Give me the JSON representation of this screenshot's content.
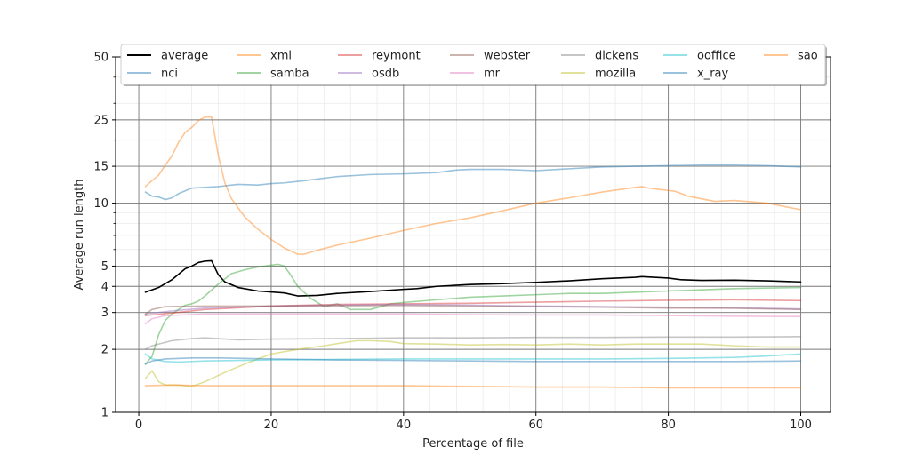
{
  "chart_data": {
    "type": "line",
    "title": "",
    "xlabel": "Percentage of file",
    "ylabel": "Average run length",
    "xlim": [
      -3.5,
      104.5
    ],
    "ylim": [
      1,
      50
    ],
    "yscale": "log",
    "xticks": [
      0,
      20,
      40,
      60,
      80,
      100
    ],
    "yticks": [
      1,
      2,
      3,
      4,
      5,
      10,
      15,
      25,
      50
    ],
    "grid": true,
    "legend": {
      "placement": "top",
      "columns": 7
    },
    "series": [
      {
        "name": "average",
        "color": "#000000",
        "width": 1.6,
        "opacity": 1,
        "points": [
          [
            1,
            3.75
          ],
          [
            3,
            3.95
          ],
          [
            5,
            4.3
          ],
          [
            7,
            4.85
          ],
          [
            8,
            5.0
          ],
          [
            9,
            5.2
          ],
          [
            10,
            5.28
          ],
          [
            11,
            5.3
          ],
          [
            12,
            4.55
          ],
          [
            13,
            4.2
          ],
          [
            15,
            3.95
          ],
          [
            18,
            3.8
          ],
          [
            22,
            3.72
          ],
          [
            24,
            3.6
          ],
          [
            27,
            3.62
          ],
          [
            30,
            3.7
          ],
          [
            35,
            3.78
          ],
          [
            40,
            3.87
          ],
          [
            42,
            3.9
          ],
          [
            45,
            4.0
          ],
          [
            50,
            4.08
          ],
          [
            55,
            4.12
          ],
          [
            60,
            4.18
          ],
          [
            65,
            4.25
          ],
          [
            70,
            4.35
          ],
          [
            75,
            4.42
          ],
          [
            76,
            4.45
          ],
          [
            80,
            4.38
          ],
          [
            82,
            4.3
          ],
          [
            85,
            4.27
          ],
          [
            90,
            4.28
          ],
          [
            95,
            4.25
          ],
          [
            100,
            4.2
          ]
        ]
      },
      {
        "name": "nci",
        "color": "#1f77b4",
        "width": 1.6,
        "opacity": 0.45,
        "points": [
          [
            1,
            11.3
          ],
          [
            2,
            10.8
          ],
          [
            3,
            10.7
          ],
          [
            4,
            10.4
          ],
          [
            5,
            10.6
          ],
          [
            6,
            11.1
          ],
          [
            8,
            11.8
          ],
          [
            10,
            11.9
          ],
          [
            12,
            12.0
          ],
          [
            15,
            12.3
          ],
          [
            18,
            12.2
          ],
          [
            20,
            12.4
          ],
          [
            22,
            12.5
          ],
          [
            25,
            12.8
          ],
          [
            30,
            13.4
          ],
          [
            35,
            13.7
          ],
          [
            40,
            13.8
          ],
          [
            45,
            14.0
          ],
          [
            48,
            14.4
          ],
          [
            50,
            14.5
          ],
          [
            55,
            14.5
          ],
          [
            60,
            14.3
          ],
          [
            65,
            14.6
          ],
          [
            70,
            14.9
          ],
          [
            75,
            15.0
          ],
          [
            80,
            15.1
          ],
          [
            85,
            15.2
          ],
          [
            90,
            15.2
          ],
          [
            95,
            15.1
          ],
          [
            100,
            14.9
          ]
        ]
      },
      {
        "name": "xml",
        "color": "#ff7f0e",
        "width": 1.6,
        "opacity": 0.45,
        "points": [
          [
            1,
            12.0
          ],
          [
            2,
            12.8
          ],
          [
            3,
            13.6
          ],
          [
            4,
            15.2
          ],
          [
            5,
            16.8
          ],
          [
            6,
            19.5
          ],
          [
            7,
            21.8
          ],
          [
            8,
            23.0
          ],
          [
            9,
            24.8
          ],
          [
            10,
            25.8
          ],
          [
            11,
            25.8
          ],
          [
            12,
            17.0
          ],
          [
            13,
            12.5
          ],
          [
            14,
            10.5
          ],
          [
            16,
            8.6
          ],
          [
            18,
            7.5
          ],
          [
            20,
            6.7
          ],
          [
            22,
            6.1
          ],
          [
            24,
            5.7
          ],
          [
            25,
            5.7
          ],
          [
            27,
            5.95
          ],
          [
            30,
            6.3
          ],
          [
            35,
            6.8
          ],
          [
            40,
            7.4
          ],
          [
            45,
            8.0
          ],
          [
            50,
            8.5
          ],
          [
            55,
            9.2
          ],
          [
            60,
            10.0
          ],
          [
            65,
            10.6
          ],
          [
            70,
            11.3
          ],
          [
            75,
            11.9
          ],
          [
            76,
            12.0
          ],
          [
            77,
            11.8
          ],
          [
            80,
            11.5
          ],
          [
            81,
            11.4
          ],
          [
            83,
            10.8
          ],
          [
            87,
            10.2
          ],
          [
            90,
            10.3
          ],
          [
            95,
            10.0
          ],
          [
            100,
            9.3
          ]
        ]
      },
      {
        "name": "samba",
        "color": "#2ca02c",
        "width": 1.6,
        "opacity": 0.45,
        "points": [
          [
            1,
            1.7
          ],
          [
            2,
            1.85
          ],
          [
            3,
            2.35
          ],
          [
            4,
            2.75
          ],
          [
            5,
            2.95
          ],
          [
            6,
            3.1
          ],
          [
            7,
            3.25
          ],
          [
            8,
            3.3
          ],
          [
            9,
            3.4
          ],
          [
            10,
            3.6
          ],
          [
            12,
            4.1
          ],
          [
            14,
            4.6
          ],
          [
            16,
            4.8
          ],
          [
            18,
            4.95
          ],
          [
            20,
            5.05
          ],
          [
            21,
            5.1
          ],
          [
            22,
            5.0
          ],
          [
            23,
            4.5
          ],
          [
            24,
            4.0
          ],
          [
            26,
            3.5
          ],
          [
            28,
            3.2
          ],
          [
            30,
            3.3
          ],
          [
            32,
            3.1
          ],
          [
            35,
            3.1
          ],
          [
            38,
            3.3
          ],
          [
            40,
            3.35
          ],
          [
            45,
            3.45
          ],
          [
            50,
            3.55
          ],
          [
            55,
            3.6
          ],
          [
            60,
            3.65
          ],
          [
            65,
            3.7
          ],
          [
            70,
            3.7
          ],
          [
            75,
            3.75
          ],
          [
            80,
            3.8
          ],
          [
            85,
            3.85
          ],
          [
            90,
            3.9
          ],
          [
            100,
            3.95
          ]
        ]
      },
      {
        "name": "reymont",
        "color": "#d62728",
        "width": 1.6,
        "opacity": 0.45,
        "points": [
          [
            1,
            2.9
          ],
          [
            5,
            2.98
          ],
          [
            10,
            3.1
          ],
          [
            20,
            3.22
          ],
          [
            30,
            3.28
          ],
          [
            40,
            3.3
          ],
          [
            50,
            3.32
          ],
          [
            60,
            3.36
          ],
          [
            70,
            3.4
          ],
          [
            80,
            3.43
          ],
          [
            90,
            3.45
          ],
          [
            100,
            3.42
          ]
        ]
      },
      {
        "name": "osdb",
        "color": "#9467bd",
        "width": 1.6,
        "opacity": 0.45,
        "points": [
          [
            1,
            2.95
          ],
          [
            5,
            3.05
          ],
          [
            10,
            3.15
          ],
          [
            20,
            3.22
          ],
          [
            30,
            3.25
          ],
          [
            40,
            3.28
          ],
          [
            50,
            3.25
          ],
          [
            60,
            3.22
          ],
          [
            70,
            3.2
          ],
          [
            80,
            3.18
          ],
          [
            90,
            3.16
          ],
          [
            100,
            3.12
          ]
        ]
      },
      {
        "name": "webster",
        "color": "#8c564b",
        "width": 1.6,
        "opacity": 0.45,
        "points": [
          [
            1,
            2.95
          ],
          [
            2,
            3.1
          ],
          [
            4,
            3.2
          ],
          [
            10,
            3.22
          ],
          [
            20,
            3.22
          ],
          [
            30,
            3.23
          ],
          [
            40,
            3.24
          ],
          [
            50,
            3.22
          ],
          [
            60,
            3.2
          ],
          [
            70,
            3.18
          ],
          [
            80,
            3.15
          ],
          [
            90,
            3.14
          ],
          [
            100,
            3.1
          ]
        ]
      },
      {
        "name": "mr",
        "color": "#e377c2",
        "width": 1.6,
        "opacity": 0.45,
        "points": [
          [
            1,
            2.65
          ],
          [
            2,
            2.8
          ],
          [
            4,
            2.9
          ],
          [
            10,
            2.95
          ],
          [
            20,
            2.95
          ],
          [
            30,
            2.95
          ],
          [
            40,
            2.95
          ],
          [
            50,
            2.93
          ],
          [
            60,
            2.92
          ],
          [
            70,
            2.92
          ],
          [
            80,
            2.9
          ],
          [
            90,
            2.88
          ],
          [
            100,
            2.87
          ]
        ]
      },
      {
        "name": "dickens",
        "color": "#7f7f7f",
        "width": 1.6,
        "opacity": 0.45,
        "points": [
          [
            1,
            2.0
          ],
          [
            2,
            2.08
          ],
          [
            5,
            2.2
          ],
          [
            8,
            2.25
          ],
          [
            10,
            2.27
          ],
          [
            12,
            2.25
          ],
          [
            15,
            2.22
          ],
          [
            20,
            2.24
          ],
          [
            30,
            2.25
          ],
          [
            40,
            2.27
          ],
          [
            50,
            2.27
          ],
          [
            60,
            2.28
          ],
          [
            70,
            2.28
          ],
          [
            80,
            2.29
          ],
          [
            90,
            2.29
          ],
          [
            100,
            2.3
          ]
        ]
      },
      {
        "name": "mozilla",
        "color": "#bcbd22",
        "width": 1.6,
        "opacity": 0.45,
        "points": [
          [
            1,
            1.45
          ],
          [
            2,
            1.58
          ],
          [
            3,
            1.4
          ],
          [
            4,
            1.35
          ],
          [
            6,
            1.35
          ],
          [
            8,
            1.33
          ],
          [
            10,
            1.4
          ],
          [
            12,
            1.5
          ],
          [
            14,
            1.6
          ],
          [
            16,
            1.7
          ],
          [
            18,
            1.8
          ],
          [
            20,
            1.9
          ],
          [
            22,
            1.95
          ],
          [
            25,
            2.02
          ],
          [
            28,
            2.08
          ],
          [
            30,
            2.13
          ],
          [
            33,
            2.2
          ],
          [
            35,
            2.2
          ],
          [
            38,
            2.18
          ],
          [
            40,
            2.13
          ],
          [
            45,
            2.12
          ],
          [
            50,
            2.1
          ],
          [
            55,
            2.11
          ],
          [
            60,
            2.1
          ],
          [
            65,
            2.12
          ],
          [
            70,
            2.1
          ],
          [
            75,
            2.12
          ],
          [
            80,
            2.12
          ],
          [
            85,
            2.12
          ],
          [
            90,
            2.08
          ],
          [
            95,
            2.05
          ],
          [
            100,
            2.05
          ]
        ]
      },
      {
        "name": "ooffice",
        "color": "#17becf",
        "width": 1.6,
        "opacity": 0.45,
        "points": [
          [
            1,
            1.9
          ],
          [
            2,
            1.8
          ],
          [
            4,
            1.75
          ],
          [
            6,
            1.74
          ],
          [
            10,
            1.76
          ],
          [
            20,
            1.78
          ],
          [
            30,
            1.79
          ],
          [
            40,
            1.8
          ],
          [
            50,
            1.8
          ],
          [
            60,
            1.8
          ],
          [
            70,
            1.8
          ],
          [
            80,
            1.81
          ],
          [
            90,
            1.83
          ],
          [
            95,
            1.86
          ],
          [
            100,
            1.9
          ]
        ]
      },
      {
        "name": "x_ray",
        "color": "#1f77b4",
        "width": 1.6,
        "opacity": 0.45,
        "points": [
          [
            1,
            1.7
          ],
          [
            2,
            1.76
          ],
          [
            4,
            1.8
          ],
          [
            8,
            1.82
          ],
          [
            12,
            1.82
          ],
          [
            20,
            1.8
          ],
          [
            30,
            1.78
          ],
          [
            40,
            1.77
          ],
          [
            50,
            1.76
          ],
          [
            60,
            1.75
          ],
          [
            70,
            1.75
          ],
          [
            80,
            1.75
          ],
          [
            90,
            1.75
          ],
          [
            100,
            1.76
          ]
        ]
      },
      {
        "name": "sao",
        "color": "#ff7f0e",
        "width": 1.6,
        "opacity": 0.45,
        "points": [
          [
            1,
            1.34
          ],
          [
            5,
            1.35
          ],
          [
            10,
            1.34
          ],
          [
            15,
            1.34
          ],
          [
            20,
            1.34
          ],
          [
            30,
            1.34
          ],
          [
            40,
            1.34
          ],
          [
            50,
            1.33
          ],
          [
            60,
            1.32
          ],
          [
            70,
            1.32
          ],
          [
            80,
            1.31
          ],
          [
            90,
            1.31
          ],
          [
            100,
            1.31
          ]
        ]
      }
    ]
  }
}
